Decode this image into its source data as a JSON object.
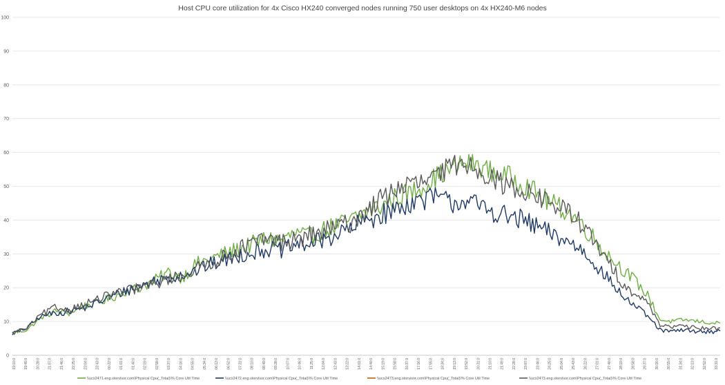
{
  "chart_data": {
    "type": "line",
    "title": "Host CPU core utilization for 4x Cisco HX240 converged nodes running 750 user desktops on 4x HX240-M6 nodes",
    "xlabel": "",
    "ylabel": "",
    "ylim": [
      0,
      100
    ],
    "yticks": [
      0,
      10,
      20,
      30,
      40,
      50,
      60,
      70,
      80,
      90,
      100
    ],
    "grid": true,
    "legend_position": "bottom",
    "xtick_labels": [
      "19:10:0",
      "19:49:0",
      "20:28:0",
      "21:07:0",
      "21:46:0",
      "22:25:0",
      "23:04:0",
      "23:43:0",
      "00:22:0",
      "01:01:0",
      "01:40:0",
      "02:19:0",
      "02:58:0",
      "03:37:0",
      "04:16:0",
      "04:55:0",
      "05:34:0",
      "06:13:0",
      "06:52:0",
      "07:31:0",
      "08:10:0",
      "08:49:0",
      "09:28:0",
      "10:07:0",
      "10:46:0",
      "11:25:0",
      "12:04:0",
      "12:43:0",
      "13:22:0",
      "14:01:0",
      "14:40:0",
      "15:19:0",
      "15:58:0",
      "16:37:0",
      "17:16:0",
      "17:55:0",
      "18:34:0",
      "19:13:0",
      "19:52:0",
      "20:31:0",
      "21:10:0",
      "21:49:0",
      "22:28:0",
      "23:07:0",
      "23:46:0",
      "24:25:0",
      "25:04:0",
      "25:43:0",
      "26:22:0",
      "27:01:0",
      "27:40:0",
      "28:19:0",
      "28:58:0",
      "29:37:0",
      "30:16:0",
      "30:55:0",
      "31:34:0",
      "32:13:0",
      "32:52:0",
      "33:31:0"
    ],
    "x_range": [
      0,
      100
    ],
    "series": [
      {
        "name": "\\\\ucs2471.eng.storvisor.com\\Physical Cpu(_Total)\\% Core Util Time",
        "color": "#70AD47",
        "points": [
          [
            0,
            6.5
          ],
          [
            2,
            7.5
          ],
          [
            4,
            11
          ],
          [
            6,
            13
          ],
          [
            8,
            12.5
          ],
          [
            10,
            14.5
          ],
          [
            12,
            15.5
          ],
          [
            14,
            17
          ],
          [
            16,
            19
          ],
          [
            18,
            20
          ],
          [
            20,
            22
          ],
          [
            22,
            24.5
          ],
          [
            24,
            23
          ],
          [
            26,
            27
          ],
          [
            28,
            28.5
          ],
          [
            30,
            30
          ],
          [
            32,
            31.5
          ],
          [
            34,
            33
          ],
          [
            36,
            34.5
          ],
          [
            38,
            34
          ],
          [
            40,
            36
          ],
          [
            42,
            35
          ],
          [
            44,
            37
          ],
          [
            46,
            38.5
          ],
          [
            48,
            40
          ],
          [
            50,
            42.5
          ],
          [
            52,
            44
          ],
          [
            54,
            46.5
          ],
          [
            56,
            48
          ],
          [
            58,
            50
          ],
          [
            60,
            53
          ],
          [
            62,
            55
          ],
          [
            64,
            57
          ],
          [
            66,
            56
          ],
          [
            68,
            54
          ],
          [
            70,
            53
          ],
          [
            72,
            51
          ],
          [
            74,
            48
          ],
          [
            76,
            45
          ],
          [
            78,
            43
          ],
          [
            80,
            40
          ],
          [
            82,
            35
          ],
          [
            84,
            30
          ],
          [
            86,
            26
          ],
          [
            88,
            22
          ],
          [
            90,
            17
          ],
          [
            91.5,
            10.5
          ],
          [
            93,
            10
          ],
          [
            95,
            10.5
          ],
          [
            97,
            10
          ],
          [
            99,
            9.5
          ],
          [
            100,
            9.5
          ]
        ]
      },
      {
        "name": "\\\\ucs2472.eng.storvisor.com\\Physical Cpu(_Total)\\% Core Util Time",
        "color": "#1F3864",
        "points": [
          [
            0,
            6.5
          ],
          [
            2,
            8
          ],
          [
            4,
            11.5
          ],
          [
            6,
            12.5
          ],
          [
            8,
            13
          ],
          [
            10,
            14
          ],
          [
            12,
            15.5
          ],
          [
            14,
            17.5
          ],
          [
            16,
            19
          ],
          [
            18,
            20.5
          ],
          [
            20,
            22
          ],
          [
            22,
            23
          ],
          [
            24,
            24
          ],
          [
            26,
            25
          ],
          [
            28,
            27
          ],
          [
            30,
            28
          ],
          [
            32,
            29.5
          ],
          [
            34,
            30.5
          ],
          [
            36,
            31.5
          ],
          [
            38,
            31
          ],
          [
            40,
            32.5
          ],
          [
            42,
            33
          ],
          [
            44,
            34
          ],
          [
            46,
            36
          ],
          [
            48,
            37.5
          ],
          [
            50,
            40
          ],
          [
            52,
            41.5
          ],
          [
            54,
            43
          ],
          [
            56,
            45
          ],
          [
            58,
            46
          ],
          [
            60,
            47
          ],
          [
            62,
            45
          ],
          [
            64,
            46
          ],
          [
            66,
            44
          ],
          [
            68,
            42.5
          ],
          [
            70,
            41
          ],
          [
            72,
            40
          ],
          [
            74,
            38
          ],
          [
            76,
            36
          ],
          [
            78,
            34
          ],
          [
            80,
            32
          ],
          [
            82,
            28
          ],
          [
            84,
            23
          ],
          [
            86,
            18
          ],
          [
            88,
            14.5
          ],
          [
            90,
            11
          ],
          [
            91.5,
            7.5
          ],
          [
            93,
            7
          ],
          [
            95,
            7.5
          ],
          [
            97,
            7
          ],
          [
            99,
            7
          ],
          [
            100,
            7.5
          ]
        ]
      },
      {
        "name": "\\\\ucs2473.eng.storvisor.com\\Physical Cpu(_Total)\\% Core Util Time",
        "color": "#C55A11",
        "points": []
      },
      {
        "name": "\\\\ucs2473.eng.storvisor.com\\Physical Cpu(_Total)\\% Core Util Time",
        "color": "#595959",
        "points": [
          [
            0,
            6.5
          ],
          [
            2,
            8
          ],
          [
            4,
            12
          ],
          [
            6,
            14
          ],
          [
            8,
            13.5
          ],
          [
            10,
            15
          ],
          [
            12,
            16.5
          ],
          [
            14,
            18
          ],
          [
            16,
            19
          ],
          [
            18,
            20
          ],
          [
            20,
            21
          ],
          [
            22,
            22.5
          ],
          [
            24,
            23.5
          ],
          [
            26,
            25.5
          ],
          [
            28,
            27.5
          ],
          [
            30,
            29
          ],
          [
            32,
            31.5
          ],
          [
            34,
            33
          ],
          [
            36,
            34.5
          ],
          [
            38,
            33.5
          ],
          [
            40,
            34
          ],
          [
            42,
            35.5
          ],
          [
            44,
            36.5
          ],
          [
            46,
            38
          ],
          [
            48,
            39.5
          ],
          [
            50,
            43
          ],
          [
            52,
            46
          ],
          [
            54,
            49
          ],
          [
            56,
            50.5
          ],
          [
            58,
            51
          ],
          [
            60,
            53
          ],
          [
            62,
            56
          ],
          [
            64,
            57
          ],
          [
            66,
            55
          ],
          [
            68,
            52
          ],
          [
            70,
            50
          ],
          [
            72,
            49
          ],
          [
            74,
            47
          ],
          [
            76,
            45
          ],
          [
            78,
            43
          ],
          [
            80,
            40
          ],
          [
            82,
            34
          ],
          [
            84,
            28
          ],
          [
            86,
            22
          ],
          [
            88,
            18
          ],
          [
            90,
            15
          ],
          [
            91.5,
            9
          ],
          [
            93,
            8.5
          ],
          [
            95,
            8.5
          ],
          [
            97,
            8
          ],
          [
            99,
            8
          ],
          [
            100,
            7.8
          ]
        ]
      }
    ]
  }
}
